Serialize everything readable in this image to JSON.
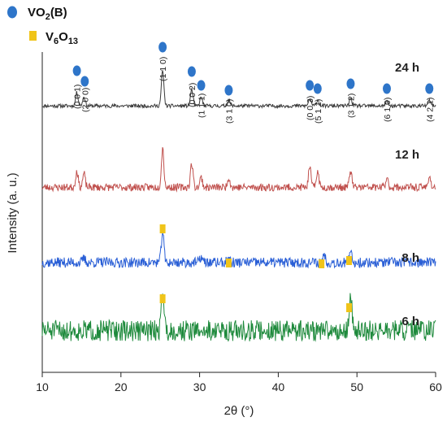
{
  "chart_data": {
    "type": "line",
    "xlabel": "2θ (°)",
    "ylabel": "Intensity (a. u.)",
    "xlim": [
      10,
      60
    ],
    "xticks": [
      "10",
      "20",
      "30",
      "40",
      "50",
      "60"
    ],
    "yticks": false,
    "grid": false,
    "legend": {
      "placement": "top-left",
      "entries": [
        {
          "marker": "ellipse",
          "color": "#2e75c9",
          "label_main": "VO",
          "label_sub": "2",
          "label_tail": "(B)"
        },
        {
          "marker": "rect",
          "color": "#f0c419",
          "label_main": "V",
          "label_sub1": "6",
          "label_mid": "O",
          "label_sub2": "13"
        }
      ]
    },
    "series": [
      {
        "name": "24 h",
        "color": "#3a3a3a",
        "baseline": 0.53,
        "noise": 0.03,
        "seed": 11,
        "peaks": [
          {
            "x": 14.4,
            "h": 0.22
          },
          {
            "x": 15.3,
            "h": 0.15
          },
          {
            "x": 25.3,
            "h": 0.58
          },
          {
            "x": 29.0,
            "h": 0.27
          },
          {
            "x": 30.2,
            "h": 0.14
          },
          {
            "x": 33.7,
            "h": 0.1
          },
          {
            "x": 44.0,
            "h": 0.12
          },
          {
            "x": 45.0,
            "h": 0.1
          },
          {
            "x": 49.2,
            "h": 0.13
          },
          {
            "x": 53.8,
            "h": 0.08
          },
          {
            "x": 59.2,
            "h": 0.09
          }
        ]
      },
      {
        "name": "12 h",
        "color": "#c0504d",
        "baseline": 0.54,
        "noise": 0.06,
        "seed": 23,
        "peaks": [
          {
            "x": 14.4,
            "h": 0.26
          },
          {
            "x": 15.3,
            "h": 0.22
          },
          {
            "x": 25.3,
            "h": 0.63
          },
          {
            "x": 29.0,
            "h": 0.38
          },
          {
            "x": 30.2,
            "h": 0.16
          },
          {
            "x": 33.7,
            "h": 0.16
          },
          {
            "x": 44.0,
            "h": 0.31
          },
          {
            "x": 45.0,
            "h": 0.26
          },
          {
            "x": 49.2,
            "h": 0.26
          },
          {
            "x": 53.8,
            "h": 0.14
          },
          {
            "x": 59.2,
            "h": 0.18
          }
        ]
      },
      {
        "name": "8 h",
        "color": "#2a5fd6",
        "baseline": 0.53,
        "noise": 0.09,
        "seed": 37,
        "peaks": [
          {
            "x": 15.3,
            "h": 0.07
          },
          {
            "x": 25.3,
            "h": 0.55
          },
          {
            "x": 30.2,
            "h": 0.1
          },
          {
            "x": 33.7,
            "h": 0.1
          },
          {
            "x": 45.8,
            "h": 0.15
          },
          {
            "x": 49.2,
            "h": 0.16
          }
        ]
      },
      {
        "name": "6 h",
        "color": "#1e8a3c",
        "baseline": 0.6,
        "noise": 0.18,
        "seed": 51,
        "peaks": [
          {
            "x": 25.3,
            "h": 0.74
          },
          {
            "x": 49.2,
            "h": 0.6
          }
        ]
      }
    ],
    "hkl_labels": [
      {
        "x": 14.4,
        "text": "(0 0 1)"
      },
      {
        "x": 15.4,
        "text": "(2 0 0)"
      },
      {
        "x": 25.3,
        "text": "(1 1 0)"
      },
      {
        "x": 29.0,
        "text": "(0 0 2)"
      },
      {
        "x": 30.2,
        "text": "(1 1 1)"
      },
      {
        "x": 33.7,
        "text": "(3 1 0)"
      },
      {
        "x": 44.0,
        "text": "(0 0 3)"
      },
      {
        "x": 45.0,
        "text": "(5 1 1)"
      },
      {
        "x": 49.2,
        "text": "(3 1 2)"
      },
      {
        "x": 53.8,
        "text": "(6 1 0)"
      },
      {
        "x": 59.2,
        "text": "(4 2 1)"
      }
    ],
    "vo2_markers": [
      14.4,
      15.4,
      25.3,
      29.0,
      30.2,
      33.7,
      44.0,
      45.0,
      49.2,
      53.8,
      59.2
    ],
    "v6o13_markers_8h": [
      25.3,
      33.7,
      45.5,
      49.0
    ],
    "v6o13_markers_6h": [
      25.3,
      49.0
    ]
  }
}
